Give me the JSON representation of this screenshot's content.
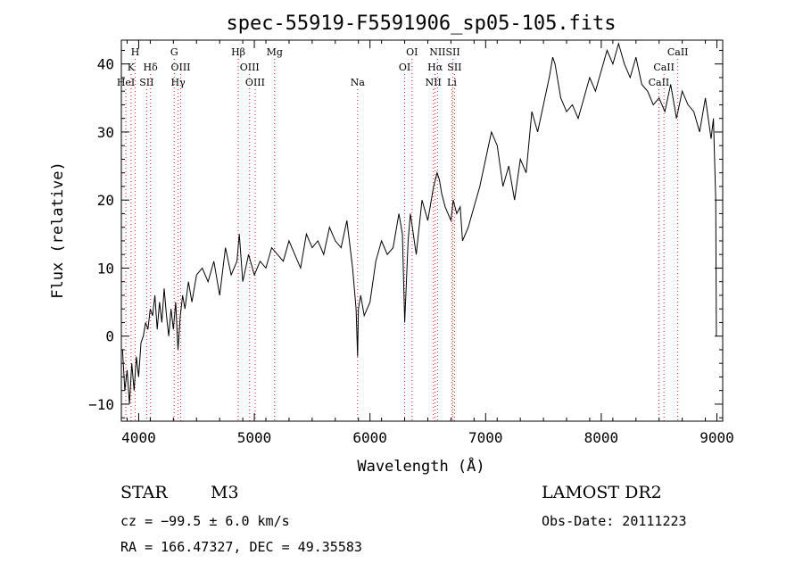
{
  "chart_data": {
    "type": "line",
    "title": "spec-55919-F5591906_sp05-105.fits",
    "xlabel": "Wavelength (Å)",
    "ylabel": "Flux (relative)",
    "xlim": [
      3850,
      9050
    ],
    "ylim": [
      -12.5,
      43.5
    ],
    "xticks": [
      4000,
      5000,
      6000,
      7000,
      8000,
      9000
    ],
    "yticks": [
      -10,
      0,
      10,
      20,
      30,
      40
    ],
    "grid": false,
    "series": [
      {
        "values_description": "flux",
        "x": [
          3860,
          3880,
          3900,
          3920,
          3940,
          3960,
          3980,
          4000,
          4020,
          4040,
          4060,
          4080,
          4100,
          4120,
          4140,
          4160,
          4180,
          4200,
          4220,
          4240,
          4260,
          4280,
          4300,
          4320,
          4340,
          4360,
          4380,
          4400,
          4430,
          4460,
          4500,
          4550,
          4600,
          4650,
          4700,
          4750,
          4800,
          4850,
          4870,
          4900,
          4950,
          5000,
          5050,
          5100,
          5150,
          5200,
          5250,
          5300,
          5350,
          5400,
          5450,
          5500,
          5550,
          5600,
          5650,
          5700,
          5750,
          5800,
          5850,
          5880,
          5893,
          5900,
          5920,
          5950,
          6000,
          6050,
          6100,
          6150,
          6200,
          6250,
          6280,
          6300,
          6330,
          6350,
          6400,
          6450,
          6500,
          6550,
          6580,
          6600,
          6620,
          6650,
          6700,
          6720,
          6750,
          6780,
          6800,
          6850,
          6900,
          6950,
          7000,
          7050,
          7100,
          7150,
          7200,
          7250,
          7300,
          7350,
          7400,
          7450,
          7500,
          7550,
          7580,
          7600,
          7650,
          7700,
          7750,
          7800,
          7850,
          7900,
          7950,
          8000,
          8050,
          8100,
          8150,
          8200,
          8250,
          8300,
          8350,
          8400,
          8450,
          8500,
          8550,
          8600,
          8650,
          8700,
          8750,
          8800,
          8850,
          8900,
          8950,
          8970,
          8990,
          8995
        ],
        "y": [
          -2,
          -8,
          -5,
          -10,
          -4,
          -8,
          -3,
          -6,
          -1,
          0,
          2,
          1,
          4,
          3,
          6,
          1,
          5,
          2,
          7,
          3,
          0,
          4,
          1,
          5,
          -2,
          3,
          6,
          4,
          8,
          5,
          9,
          10,
          8,
          11,
          6,
          13,
          9,
          11,
          15,
          8,
          12,
          9,
          11,
          10,
          13,
          12,
          11,
          14,
          12,
          10,
          15,
          13,
          14,
          12,
          16,
          14,
          13,
          17,
          10,
          4,
          -3,
          4,
          6,
          3,
          5,
          11,
          14,
          12,
          13,
          18,
          15,
          2,
          14,
          18,
          12,
          20,
          17,
          22,
          24,
          23,
          21,
          19,
          17,
          20,
          18,
          19,
          14,
          16,
          19,
          22,
          26,
          30,
          28,
          22,
          25,
          20,
          26,
          24,
          33,
          30,
          34,
          38,
          41,
          40,
          35,
          33,
          34,
          32,
          35,
          38,
          36,
          39,
          42,
          40,
          43,
          40,
          38,
          41,
          37,
          36,
          34,
          35,
          33,
          37,
          32,
          36,
          34,
          33,
          30,
          35,
          29,
          32,
          20,
          0
        ]
      }
    ],
    "line_markers": [
      {
        "label": "H",
        "x": 3970,
        "row": 1
      },
      {
        "label": "K",
        "x": 3934,
        "row": 2
      },
      {
        "label": "HeI",
        "x": 3889,
        "row": 3
      },
      {
        "label": "Hδ",
        "x": 4102,
        "row": 2
      },
      {
        "label": "SII",
        "x": 4069,
        "row": 3
      },
      {
        "label": "G",
        "x": 4307,
        "row": 1
      },
      {
        "label": "OIII",
        "x": 4363,
        "row": 2
      },
      {
        "label": "Hγ",
        "x": 4341,
        "row": 3
      },
      {
        "label": "Hβ",
        "x": 4861,
        "row": 1
      },
      {
        "label": "OIII",
        "x": 4959,
        "row": 2
      },
      {
        "label": "OIII",
        "x": 5007,
        "row": 3
      },
      {
        "label": "Mg",
        "x": 5175,
        "row": 1
      },
      {
        "label": "Na",
        "x": 5893,
        "row": 3
      },
      {
        "label": "OI",
        "x": 6364,
        "row": 1
      },
      {
        "label": "OI",
        "x": 6300,
        "row": 2
      },
      {
        "label": "NII",
        "x": 6584,
        "row": 1
      },
      {
        "label": "SII",
        "x": 6717,
        "row": 1
      },
      {
        "label": "Hα",
        "x": 6563,
        "row": 2
      },
      {
        "label": "SII",
        "x": 6731,
        "row": 2
      },
      {
        "label": "NII",
        "x": 6548,
        "row": 3
      },
      {
        "label": "Li",
        "x": 6708,
        "row": 3
      },
      {
        "label": "CaII",
        "x": 8662,
        "row": 1
      },
      {
        "label": "CaII",
        "x": 8542,
        "row": 2
      },
      {
        "label": "CaII",
        "x": 8498,
        "row": 3
      }
    ]
  },
  "info": {
    "class_label": "STAR",
    "subclass": "M3",
    "survey": "LAMOST DR2",
    "cz": "cz = −99.5 ± 6.0 km/s",
    "obs_date": "Obs-Date: 20111223",
    "coords": "RA = 166.47327, DEC =  49.35583"
  }
}
